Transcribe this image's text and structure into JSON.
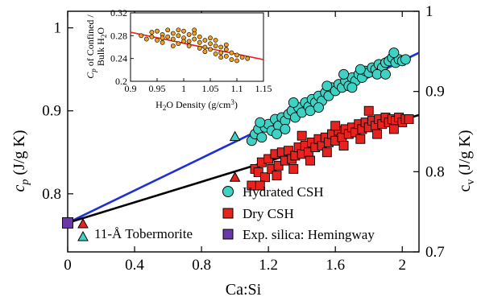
{
  "chart_data": {
    "type": "scatter",
    "x_axis": {
      "label": "Ca:Si",
      "range": [
        0,
        2.1
      ],
      "ticks": [
        0,
        0.4,
        0.8,
        1.2,
        1.6,
        2
      ],
      "tick_labels": [
        "0",
        "0.4",
        "0.8",
        "1.2",
        "1.6",
        "2"
      ]
    },
    "y_axis_left": {
      "label_main": "c",
      "label_sub": "p",
      "label_unit": " (J/g K)",
      "range": [
        0.73,
        1.02
      ],
      "ticks": [
        0.8,
        0.9,
        1.0
      ],
      "tick_labels": [
        "0.8",
        "0.9",
        "1"
      ]
    },
    "y_axis_right": {
      "label_main": "c",
      "label_sub": "v",
      "label_unit": " (J/g K)",
      "range": [
        0.7,
        1.0
      ],
      "ticks": [
        0.7,
        0.8,
        0.9,
        1.0
      ],
      "tick_labels": [
        "0.7",
        "0.8",
        "0.9",
        "1"
      ]
    },
    "fits": [
      {
        "name": "hydrated-fit",
        "color": "#1f2fd6",
        "points": [
          [
            0,
            0.765
          ],
          [
            2.1,
            0.97
          ]
        ]
      },
      {
        "name": "dry-fit",
        "color": "#000000",
        "points": [
          [
            0,
            0.765
          ],
          [
            2.1,
            0.895
          ]
        ]
      }
    ],
    "series": [
      {
        "name": "Hydrated CSH",
        "marker": "circle",
        "fill": "#3ed2c4",
        "points": [
          [
            1.1,
            0.864
          ],
          [
            1.12,
            0.872
          ],
          [
            1.14,
            0.878
          ],
          [
            1.16,
            0.868
          ],
          [
            1.18,
            0.88
          ],
          [
            1.2,
            0.884
          ],
          [
            1.22,
            0.876
          ],
          [
            1.24,
            0.89
          ],
          [
            1.26,
            0.882
          ],
          [
            1.28,
            0.892
          ],
          [
            1.3,
            0.888
          ],
          [
            1.32,
            0.896
          ],
          [
            1.34,
            0.9
          ],
          [
            1.36,
            0.892
          ],
          [
            1.38,
            0.904
          ],
          [
            1.4,
            0.898
          ],
          [
            1.42,
            0.91
          ],
          [
            1.44,
            0.905
          ],
          [
            1.46,
            0.914
          ],
          [
            1.48,
            0.91
          ],
          [
            1.5,
            0.918
          ],
          [
            1.52,
            0.912
          ],
          [
            1.54,
            0.922
          ],
          [
            1.56,
            0.918
          ],
          [
            1.58,
            0.928
          ],
          [
            1.6,
            0.924
          ],
          [
            1.62,
            0.932
          ],
          [
            1.64,
            0.928
          ],
          [
            1.66,
            0.936
          ],
          [
            1.68,
            0.93
          ],
          [
            1.7,
            0.94
          ],
          [
            1.72,
            0.936
          ],
          [
            1.74,
            0.944
          ],
          [
            1.76,
            0.94
          ],
          [
            1.78,
            0.948
          ],
          [
            1.8,
            0.946
          ],
          [
            1.82,
            0.952
          ],
          [
            1.84,
            0.95
          ],
          [
            1.86,
            0.956
          ],
          [
            1.88,
            0.952
          ],
          [
            1.9,
            0.958
          ],
          [
            1.92,
            0.96
          ],
          [
            1.94,
            0.964
          ],
          [
            1.96,
            0.958
          ],
          [
            1.98,
            0.962
          ],
          [
            2.0,
            0.96
          ],
          [
            2.02,
            0.962
          ],
          [
            1.15,
            0.886
          ],
          [
            1.25,
            0.872
          ],
          [
            1.35,
            0.91
          ],
          [
            1.45,
            0.9
          ],
          [
            1.55,
            0.93
          ],
          [
            1.65,
            0.944
          ],
          [
            1.75,
            0.95
          ],
          [
            1.85,
            0.944
          ],
          [
            1.95,
            0.97
          ],
          [
            1.3,
            0.878
          ],
          [
            1.5,
            0.904
          ],
          [
            1.7,
            0.928
          ],
          [
            1.9,
            0.944
          ]
        ]
      },
      {
        "name": "Dry CSH",
        "marker": "square",
        "fill": "#e8231f",
        "points": [
          [
            1.1,
            0.81
          ],
          [
            1.12,
            0.83
          ],
          [
            1.14,
            0.826
          ],
          [
            1.16,
            0.838
          ],
          [
            1.18,
            0.82
          ],
          [
            1.2,
            0.842
          ],
          [
            1.22,
            0.83
          ],
          [
            1.24,
            0.848
          ],
          [
            1.26,
            0.834
          ],
          [
            1.28,
            0.85
          ],
          [
            1.3,
            0.84
          ],
          [
            1.32,
            0.852
          ],
          [
            1.34,
            0.842
          ],
          [
            1.36,
            0.846
          ],
          [
            1.38,
            0.856
          ],
          [
            1.4,
            0.848
          ],
          [
            1.42,
            0.858
          ],
          [
            1.44,
            0.85
          ],
          [
            1.46,
            0.862
          ],
          [
            1.48,
            0.856
          ],
          [
            1.5,
            0.866
          ],
          [
            1.52,
            0.858
          ],
          [
            1.54,
            0.868
          ],
          [
            1.56,
            0.862
          ],
          [
            1.58,
            0.872
          ],
          [
            1.6,
            0.864
          ],
          [
            1.62,
            0.876
          ],
          [
            1.64,
            0.868
          ],
          [
            1.66,
            0.878
          ],
          [
            1.68,
            0.872
          ],
          [
            1.7,
            0.88
          ],
          [
            1.72,
            0.874
          ],
          [
            1.74,
            0.884
          ],
          [
            1.76,
            0.878
          ],
          [
            1.78,
            0.886
          ],
          [
            1.8,
            0.88
          ],
          [
            1.82,
            0.888
          ],
          [
            1.84,
            0.882
          ],
          [
            1.86,
            0.89
          ],
          [
            1.88,
            0.884
          ],
          [
            1.9,
            0.892
          ],
          [
            1.92,
            0.886
          ],
          [
            1.94,
            0.89
          ],
          [
            1.96,
            0.888
          ],
          [
            1.98,
            0.892
          ],
          [
            2.0,
            0.886
          ],
          [
            2.02,
            0.89
          ],
          [
            2.04,
            0.89
          ],
          [
            1.15,
            0.81
          ],
          [
            1.25,
            0.822
          ],
          [
            1.35,
            0.83
          ],
          [
            1.45,
            0.84
          ],
          [
            1.55,
            0.85
          ],
          [
            1.65,
            0.858
          ],
          [
            1.75,
            0.866
          ],
          [
            1.85,
            0.872
          ],
          [
            1.95,
            0.878
          ],
          [
            1.4,
            0.87
          ],
          [
            1.6,
            0.882
          ],
          [
            1.8,
            0.9
          ]
        ]
      },
      {
        "name": "11-Å Tobermorite (cp)",
        "marker": "triangle",
        "fill": "#e8231f",
        "points": [
          [
            1.0,
            0.82
          ]
        ]
      },
      {
        "name": "11-Å Tobermorite (cv)",
        "marker": "triangle",
        "fill": "#3ed2c4",
        "points": [
          [
            1.0,
            0.869
          ]
        ]
      },
      {
        "name": "Exp. silica: Hemingway",
        "marker": "square",
        "fill": "#6a38a8",
        "points": [
          [
            0,
            0.765
          ]
        ]
      }
    ],
    "legend": {
      "placement": "bottom-right",
      "entries": [
        {
          "label": "Hydrated CSH",
          "marker": "circle",
          "fill": "#3ed2c4"
        },
        {
          "label": "Dry CSH",
          "marker": "square",
          "fill": "#e8231f"
        },
        {
          "label": "Exp. silica: Hemingway",
          "marker": "square",
          "fill": "#6a38a8"
        }
      ],
      "tobermorite_label": "11-Å Tobermorite"
    },
    "inset": {
      "type": "scatter",
      "x_axis": {
        "label": "H",
        "label_parts": [
          "H",
          "2",
          "O Density (g/cm",
          "3",
          ")"
        ],
        "range": [
          0.9,
          1.15
        ],
        "ticks": [
          0.9,
          0.95,
          1.0,
          1.05,
          1.1,
          1.15
        ],
        "tick_labels": [
          "0.9",
          "0.95",
          "1",
          "1.05",
          "1.1",
          "1.15"
        ]
      },
      "y_axis": {
        "label_line1": "C",
        "label_line1_parts": [
          "C",
          "p",
          " of Confined /"
        ],
        "label_line2_parts": [
          "Bulk H",
          "2",
          "O"
        ],
        "range": [
          0.2,
          0.32
        ],
        "ticks": [
          0.2,
          0.24,
          0.28,
          0.32
        ],
        "tick_labels": [
          "0.2",
          "0.24",
          "0.28",
          "0.32"
        ]
      },
      "fit": {
        "color": "#e8231f",
        "points": [
          [
            0.9,
            0.286
          ],
          [
            1.15,
            0.238
          ]
        ]
      },
      "points": [
        [
          0.92,
          0.28
        ],
        [
          0.93,
          0.274
        ],
        [
          0.94,
          0.286
        ],
        [
          0.95,
          0.272
        ],
        [
          0.95,
          0.288
        ],
        [
          0.96,
          0.282
        ],
        [
          0.96,
          0.268
        ],
        [
          0.97,
          0.278
        ],
        [
          0.97,
          0.29
        ],
        [
          0.98,
          0.274
        ],
        [
          0.98,
          0.284
        ],
        [
          0.99,
          0.28
        ],
        [
          0.99,
          0.266
        ],
        [
          1.0,
          0.276
        ],
        [
          1.0,
          0.288
        ],
        [
          1.0,
          0.27
        ],
        [
          1.01,
          0.282
        ],
        [
          1.01,
          0.262
        ],
        [
          1.02,
          0.274
        ],
        [
          1.02,
          0.284
        ],
        [
          1.03,
          0.268
        ],
        [
          1.03,
          0.278
        ],
        [
          1.04,
          0.26
        ],
        [
          1.04,
          0.272
        ],
        [
          1.05,
          0.266
        ],
        [
          1.05,
          0.256
        ],
        [
          1.06,
          0.262
        ],
        [
          1.06,
          0.272
        ],
        [
          1.07,
          0.25
        ],
        [
          1.07,
          0.26
        ],
        [
          1.08,
          0.256
        ],
        [
          1.08,
          0.244
        ],
        [
          1.09,
          0.25
        ],
        [
          1.09,
          0.238
        ],
        [
          1.1,
          0.246
        ],
        [
          1.1,
          0.236
        ],
        [
          1.11,
          0.242
        ],
        [
          0.98,
          0.262
        ],
        [
          1.02,
          0.29
        ],
        [
          1.04,
          0.252
        ],
        [
          0.96,
          0.276
        ],
        [
          1.06,
          0.248
        ],
        [
          1.08,
          0.264
        ],
        [
          1.12,
          0.24
        ],
        [
          0.94,
          0.278
        ],
        [
          1.01,
          0.27
        ],
        [
          1.03,
          0.258
        ],
        [
          1.05,
          0.276
        ],
        [
          0.99,
          0.29
        ],
        [
          1.07,
          0.242
        ]
      ]
    }
  }
}
